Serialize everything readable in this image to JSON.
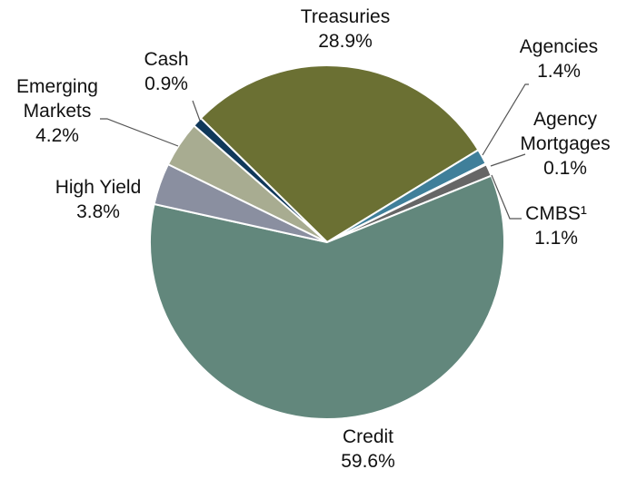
{
  "chart_data": {
    "type": "pie",
    "categories": [
      "Treasuries",
      "Agencies",
      "Agency Mortgages",
      "CMBS¹",
      "Credit",
      "High Yield",
      "Emerging Markets",
      "Cash"
    ],
    "values": [
      28.9,
      1.4,
      0.1,
      1.1,
      59.6,
      3.8,
      4.2,
      0.9
    ],
    "value_labels": [
      "28.9%",
      "1.4%",
      "0.1%",
      "1.1%",
      "59.6%",
      "3.8%",
      "4.2%",
      "0.9%"
    ],
    "colors": [
      "#6b7033",
      "#3f7f9a",
      "#a0a7b8",
      "#666666",
      "#62877c",
      "#8a8fa0",
      "#a8ac91",
      "#10385a"
    ]
  }
}
